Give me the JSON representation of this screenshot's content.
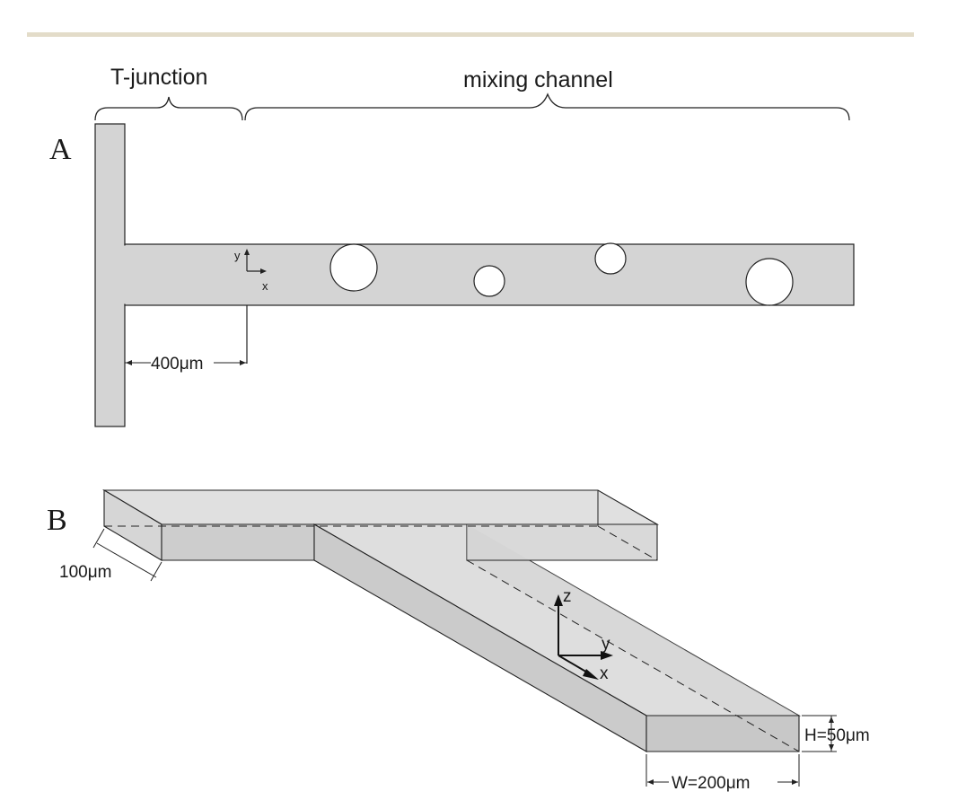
{
  "panel_a": {
    "letter": "A",
    "bracket_t_junction_label": "T-junction",
    "bracket_mixing_label": "mixing channel",
    "axis_y_label": "y",
    "axis_x_label": "x",
    "dimension_label": "400μm"
  },
  "panel_b": {
    "letter": "B",
    "width_left_label": "100μm",
    "axis_z_label": "z",
    "axis_y_label": "y",
    "axis_x_label": "x",
    "height_label": "H=50μm",
    "width_label": "W=200μm"
  },
  "colors": {
    "header_bar": "#e3dcc9",
    "channel_fill": "#d4d4d4",
    "top_face_fill": "#e0e0e0",
    "side_face_fill": "#cdcdcd",
    "front_face_fill": "#c8c8c8",
    "stroke": "#222222"
  }
}
